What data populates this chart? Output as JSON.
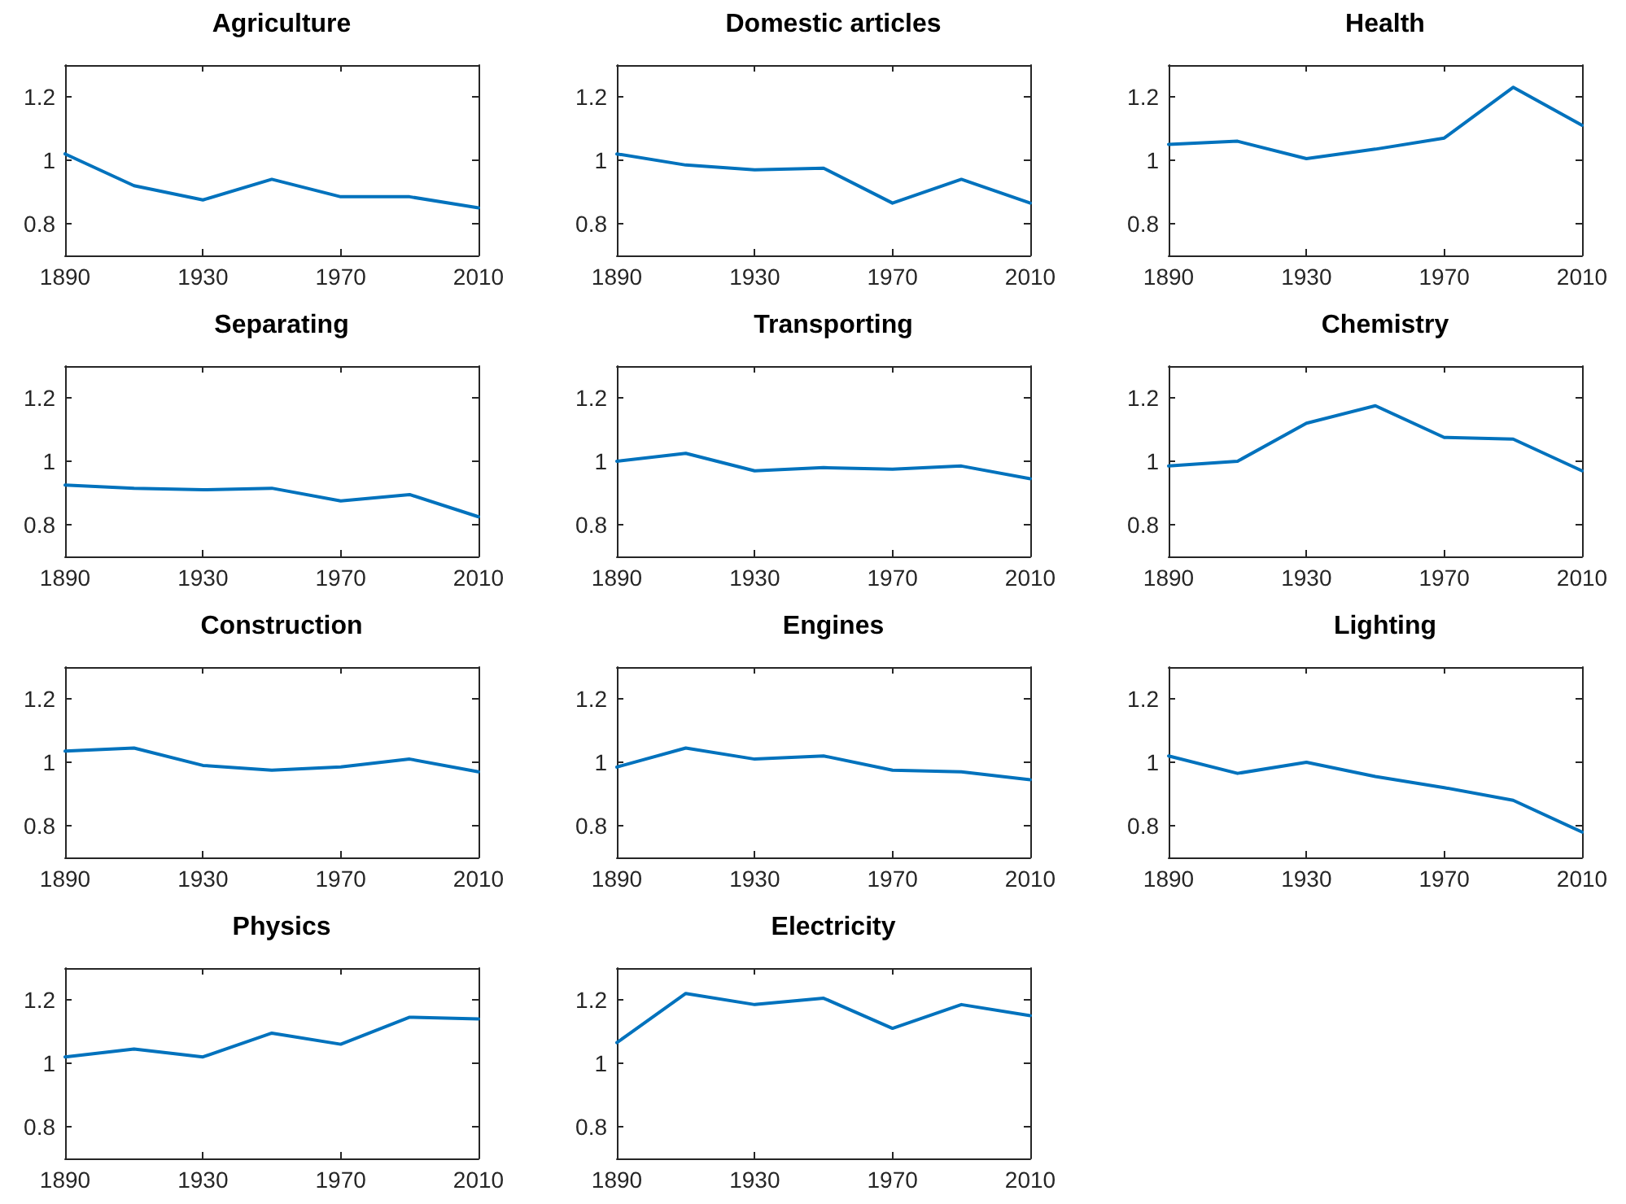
{
  "chart_data": [
    {
      "type": "line",
      "title": "Agriculture",
      "x": [
        1890,
        1910,
        1930,
        1950,
        1970,
        1990,
        2010
      ],
      "series": [
        {
          "color": "#0072bd",
          "values": [
            1.02,
            0.92,
            0.875,
            0.94,
            0.885,
            0.885,
            0.85
          ]
        }
      ],
      "xlim": [
        1890,
        2010
      ],
      "xticks": [
        1890,
        1930,
        1970,
        2010
      ],
      "ylim": [
        0.7,
        1.3
      ],
      "yticks": [
        0.8,
        1,
        1.2
      ],
      "marker": "none"
    },
    {
      "type": "line",
      "title": "Domestic articles",
      "x": [
        1890,
        1910,
        1930,
        1950,
        1970,
        1990,
        2010
      ],
      "series": [
        {
          "color": "#0072bd",
          "values": [
            1.02,
            0.985,
            0.97,
            0.975,
            0.865,
            0.94,
            0.865
          ]
        }
      ],
      "xlim": [
        1890,
        2010
      ],
      "xticks": [
        1890,
        1930,
        1970,
        2010
      ],
      "ylim": [
        0.7,
        1.3
      ],
      "yticks": [
        0.8,
        1,
        1.2
      ],
      "marker": "none"
    },
    {
      "type": "line",
      "title": "Health",
      "x": [
        1890,
        1910,
        1930,
        1950,
        1970,
        1990,
        2010
      ],
      "series": [
        {
          "color": "#0072bd",
          "values": [
            1.05,
            1.06,
            1.005,
            1.035,
            1.07,
            1.23,
            1.11
          ]
        }
      ],
      "xlim": [
        1890,
        2010
      ],
      "xticks": [
        1890,
        1930,
        1970,
        2010
      ],
      "ylim": [
        0.7,
        1.3
      ],
      "yticks": [
        0.8,
        1,
        1.2
      ],
      "marker": "none"
    },
    {
      "type": "line",
      "title": "Separating",
      "x": [
        1890,
        1910,
        1930,
        1950,
        1970,
        1990,
        2010
      ],
      "series": [
        {
          "color": "#0072bd",
          "values": [
            0.925,
            0.915,
            0.91,
            0.915,
            0.875,
            0.895,
            0.825
          ]
        }
      ],
      "xlim": [
        1890,
        2010
      ],
      "xticks": [
        1890,
        1930,
        1970,
        2010
      ],
      "ylim": [
        0.7,
        1.3
      ],
      "yticks": [
        0.8,
        1,
        1.2
      ],
      "marker": "none"
    },
    {
      "type": "line",
      "title": "Transporting",
      "x": [
        1890,
        1910,
        1930,
        1950,
        1970,
        1990,
        2010
      ],
      "series": [
        {
          "color": "#0072bd",
          "values": [
            1.0,
            1.025,
            0.97,
            0.98,
            0.975,
            0.985,
            0.945
          ]
        }
      ],
      "xlim": [
        1890,
        2010
      ],
      "xticks": [
        1890,
        1930,
        1970,
        2010
      ],
      "ylim": [
        0.7,
        1.3
      ],
      "yticks": [
        0.8,
        1,
        1.2
      ],
      "marker": "none"
    },
    {
      "type": "line",
      "title": "Chemistry",
      "x": [
        1890,
        1910,
        1930,
        1950,
        1970,
        1990,
        2010
      ],
      "series": [
        {
          "color": "#0072bd",
          "values": [
            0.985,
            1.0,
            1.12,
            1.175,
            1.075,
            1.07,
            0.97
          ]
        }
      ],
      "xlim": [
        1890,
        2010
      ],
      "xticks": [
        1890,
        1930,
        1970,
        2010
      ],
      "ylim": [
        0.7,
        1.3
      ],
      "yticks": [
        0.8,
        1,
        1.2
      ],
      "marker": "none"
    },
    {
      "type": "line",
      "title": "Construction",
      "x": [
        1890,
        1910,
        1930,
        1950,
        1970,
        1990,
        2010
      ],
      "series": [
        {
          "color": "#0072bd",
          "values": [
            1.035,
            1.045,
            0.99,
            0.975,
            0.985,
            1.01,
            0.97
          ]
        }
      ],
      "xlim": [
        1890,
        2010
      ],
      "xticks": [
        1890,
        1930,
        1970,
        2010
      ],
      "ylim": [
        0.7,
        1.3
      ],
      "yticks": [
        0.8,
        1,
        1.2
      ],
      "marker": "none"
    },
    {
      "type": "line",
      "title": "Engines",
      "x": [
        1890,
        1910,
        1930,
        1950,
        1970,
        1990,
        2010
      ],
      "series": [
        {
          "color": "#0072bd",
          "values": [
            0.985,
            1.045,
            1.01,
            1.02,
            0.975,
            0.97,
            0.945
          ]
        }
      ],
      "xlim": [
        1890,
        2010
      ],
      "xticks": [
        1890,
        1930,
        1970,
        2010
      ],
      "ylim": [
        0.7,
        1.3
      ],
      "yticks": [
        0.8,
        1,
        1.2
      ],
      "marker": "none"
    },
    {
      "type": "line",
      "title": "Lighting",
      "x": [
        1890,
        1910,
        1930,
        1950,
        1970,
        1990,
        2010
      ],
      "series": [
        {
          "color": "#0072bd",
          "values": [
            1.02,
            0.965,
            1.0,
            0.955,
            0.92,
            0.88,
            0.78
          ]
        }
      ],
      "xlim": [
        1890,
        2010
      ],
      "xticks": [
        1890,
        1930,
        1970,
        2010
      ],
      "ylim": [
        0.7,
        1.3
      ],
      "yticks": [
        0.8,
        1,
        1.2
      ],
      "marker": "none"
    },
    {
      "type": "line",
      "title": "Physics",
      "x": [
        1890,
        1910,
        1930,
        1950,
        1970,
        1990,
        2010
      ],
      "series": [
        {
          "color": "#0072bd",
          "values": [
            1.02,
            1.045,
            1.02,
            1.095,
            1.06,
            1.145,
            1.14
          ]
        }
      ],
      "xlim": [
        1890,
        2010
      ],
      "xticks": [
        1890,
        1930,
        1970,
        2010
      ],
      "ylim": [
        0.7,
        1.3
      ],
      "yticks": [
        0.8,
        1,
        1.2
      ],
      "marker": "none"
    },
    {
      "type": "line",
      "title": "Electricity",
      "x": [
        1890,
        1910,
        1930,
        1950,
        1970,
        1990,
        2010
      ],
      "series": [
        {
          "color": "#0072bd",
          "values": [
            1.065,
            1.22,
            1.185,
            1.205,
            1.11,
            1.185,
            1.15
          ]
        }
      ],
      "xlim": [
        1890,
        2010
      ],
      "xticks": [
        1890,
        1930,
        1970,
        2010
      ],
      "ylim": [
        0.7,
        1.3
      ],
      "yticks": [
        0.8,
        1,
        1.2
      ],
      "marker": "none"
    }
  ]
}
